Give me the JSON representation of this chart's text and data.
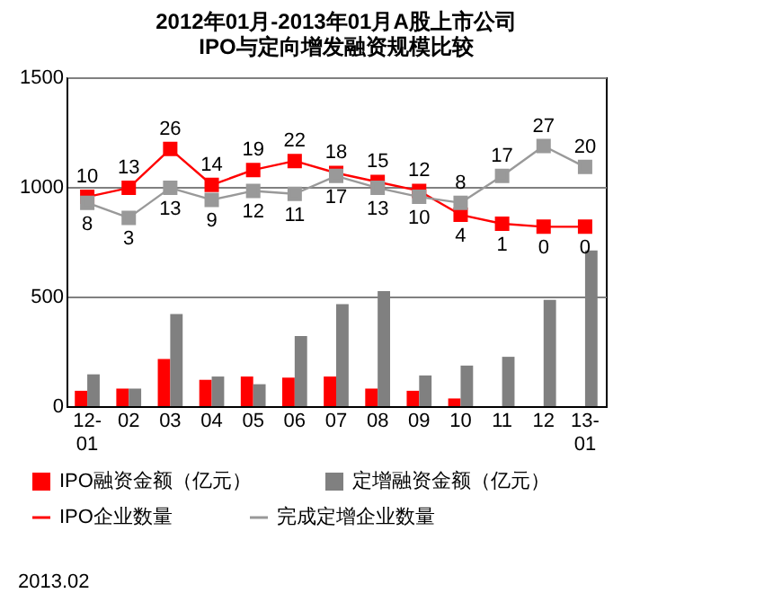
{
  "chart_data": {
    "type": "bar",
    "title": "2012年01月-2013年01月A股上市公司\nIPO与定向增发融资规模比较",
    "categories": [
      "12-01",
      "02",
      "03",
      "04",
      "05",
      "06",
      "07",
      "08",
      "09",
      "10",
      "11",
      "12",
      "13-01"
    ],
    "series": [
      {
        "name": "IPO融资金额（亿元）",
        "color": "#ff0000",
        "values": [
          70,
          80,
          215,
          120,
          135,
          130,
          135,
          80,
          70,
          35,
          0,
          0,
          0
        ]
      },
      {
        "name": "定增融资金额（亿元）",
        "color": "#808080",
        "values": [
          145,
          80,
          420,
          135,
          100,
          320,
          465,
          525,
          140,
          185,
          225,
          485,
          710
        ]
      },
      {
        "name": "IPO企业数量",
        "type": "line",
        "axis": "y2",
        "color": "#ff0000",
        "values": [
          10,
          13,
          26,
          14,
          19,
          22,
          18,
          15,
          12,
          4,
          1,
          0,
          0
        ],
        "value_labels": [
          "10",
          "13",
          "26",
          "14",
          "19",
          "22",
          "18",
          "15",
          "12",
          "4",
          "1",
          "0",
          "0"
        ]
      },
      {
        "name": "完成定增企业数量",
        "type": "line",
        "axis": "y2",
        "color": "#999999",
        "values": [
          8,
          3,
          13,
          9,
          12,
          11,
          17,
          13,
          10,
          8,
          17,
          27,
          20
        ],
        "value_labels": [
          "8",
          "3",
          "13",
          "9",
          "12",
          "11",
          "17",
          "13",
          "10",
          "8",
          "17",
          "27",
          "20"
        ]
      }
    ],
    "ylim": [
      0,
      1500
    ],
    "yticks": [
      0,
      500,
      1000,
      1500
    ],
    "y2lim": [
      -60,
      50
    ],
    "grid": "y",
    "legend": "bottom",
    "marker": "square",
    "line_style": "solid",
    "annotations": [
      "2013.02"
    ]
  }
}
